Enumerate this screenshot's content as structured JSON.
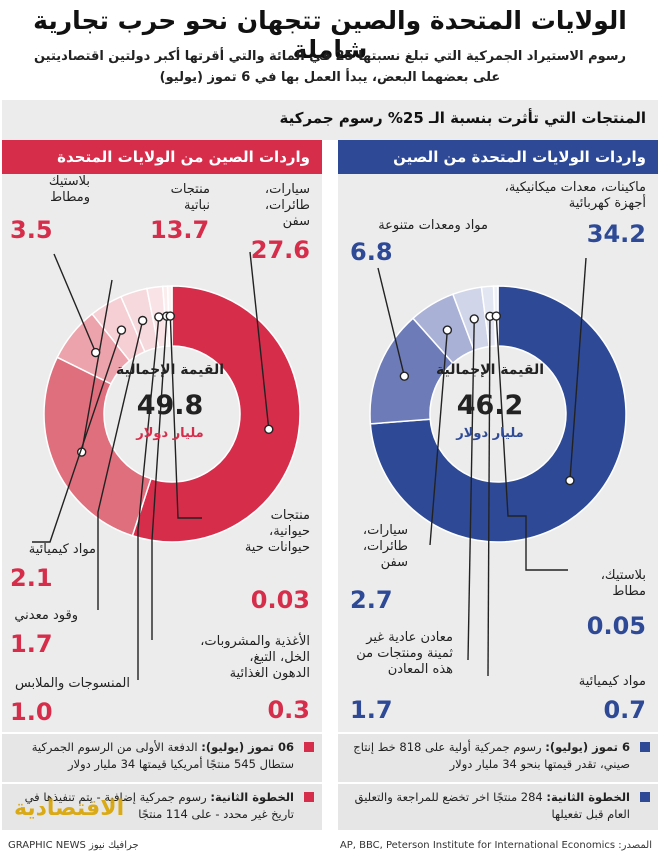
{
  "header": {
    "title": "الولايات المتحدة والصين تتجهان نحو حرب تجارية شاملة",
    "subtitle_line1": "رسوم الاستيراد الجمركية التي تبلغ نسبتها 25 في المائة والتي أقرتها أكبر دولتين اقتصاديتين",
    "subtitle_line2": "على بعضهما البعض، يبدأ العمل بها في 6 تموز (يوليو)"
  },
  "section_title": "المنتجات التي تأثرت بنسبة الـ 25% رسوم جمركية",
  "colors": {
    "us_dark": "#2e4a96",
    "us_mid": "#6d7cb8",
    "us_light": "#a9b1d6",
    "us_pale": "#d0d5ea",
    "cn_dark": "#d62d4b",
    "cn_mid": "#e06f7d",
    "cn_light": "#eda3ab",
    "cn_pale": "#f5cfd3"
  },
  "chart_data": [
    {
      "type": "pie",
      "title": "واردات الولايات المتحدة من الصين",
      "center_label": "القيمة الإجمالية",
      "total": "46.2",
      "unit": "مليار دولار",
      "categories": [
        "ماكينات، معدات ميكانيكية، أجهزة كهربائية",
        "مواد ومعدات متنوعة",
        "سيارات، طائرات، سفن",
        "معادن عادية غير ثمينة ومنتجات من هذه المعادن",
        "مواد كيميائية",
        "بلاستيك، مطاط"
      ],
      "values": [
        34.2,
        6.8,
        2.7,
        1.7,
        0.7,
        0.05
      ],
      "value_labels": [
        "34.2",
        "6.8",
        "2.7",
        "1.7",
        "0.7",
        "0.05"
      ]
    },
    {
      "type": "pie",
      "title": "واردات الصين من الولايات المتحدة",
      "center_label": "القيمة الإجمالية",
      "total": "49.8",
      "unit": "مليار دولار",
      "categories": [
        "سيارات، طائرات، سفن",
        "منتجات نباتية",
        "بلاستيك ومطاط",
        "مواد كيميائية",
        "وقود معدني",
        "المنسوجات والملابس",
        "الأغذية والمشروبات، الخل، التبغ، الدهون الغذائية",
        "منتجات حيوانية، حيوانات حية"
      ],
      "values": [
        27.6,
        13.7,
        3.5,
        2.1,
        1.7,
        1.0,
        0.3,
        0.03
      ],
      "value_labels": [
        "27.6",
        "13.7",
        "3.5",
        "2.1",
        "1.7",
        "1.0",
        "0.3",
        "0.03"
      ]
    }
  ],
  "us_labels": {
    "machines": "ماكينات، معدات ميكانيكية،",
    "machines2": "أجهزة كهربائية",
    "misc": "مواد ومعدات متنوعة",
    "cars": "سيارات،",
    "cars2": "طائرات،",
    "cars3": "سفن",
    "metals": "معادن عادية غير",
    "metals2": "ثمينة ومنتجات من",
    "metals3": "هذه المعادن",
    "chem": "مواد كيميائية",
    "plastic": "بلاستيك،",
    "plastic2": "مطاط"
  },
  "cn_labels": {
    "cars": "سيارات،",
    "cars2": "طائرات،",
    "cars3": "سفن",
    "veg": "منتجات",
    "veg2": "نباتية",
    "plastic": "بلاستيك",
    "plastic2": "ومطاط",
    "chem": "مواد كيميائية",
    "fuel": "وقود معدني",
    "textile": "المنسوجات والملابس",
    "food": "الأغذية والمشروبات،",
    "food2": "الخل، التبغ،",
    "food3": "الدهون الغذائية",
    "animal": "منتجات",
    "animal2": "حيوانية،",
    "animal3": "حيوانات حية"
  },
  "notes": {
    "us1_bold": "6 تموز (يوليو):",
    "us1_text": "رسوم جمركية أولية على 818 خط إنتاج صيني، تقدر قيمتها بنحو 34 مليار دولار",
    "us2_bold": "الخطوة الثانية:",
    "us2_text": "284 منتجًا اخر تخضع للمراجعة والتعليق العام قبل تفعيلها",
    "cn1_bold": "06 تموز (يوليو):",
    "cn1_text": "الدفعة الأولى من الرسوم الجمركية ستطال 545 منتجًا أمريكيا قيمتها 34 مليار دولار",
    "cn2_bold": "الخطوة الثانية:",
    "cn2_text": "رسوم جمركية إضافية - يتم تنفيذها في تاريخ غير محدد - على 114 منتجًا"
  },
  "footer": {
    "source": "المصدر: AP, BBC, Peterson Institute for International Economics",
    "credit": "جرافيك نيوز GRAPHIC NEWS",
    "logo": "الاقتصادية"
  }
}
